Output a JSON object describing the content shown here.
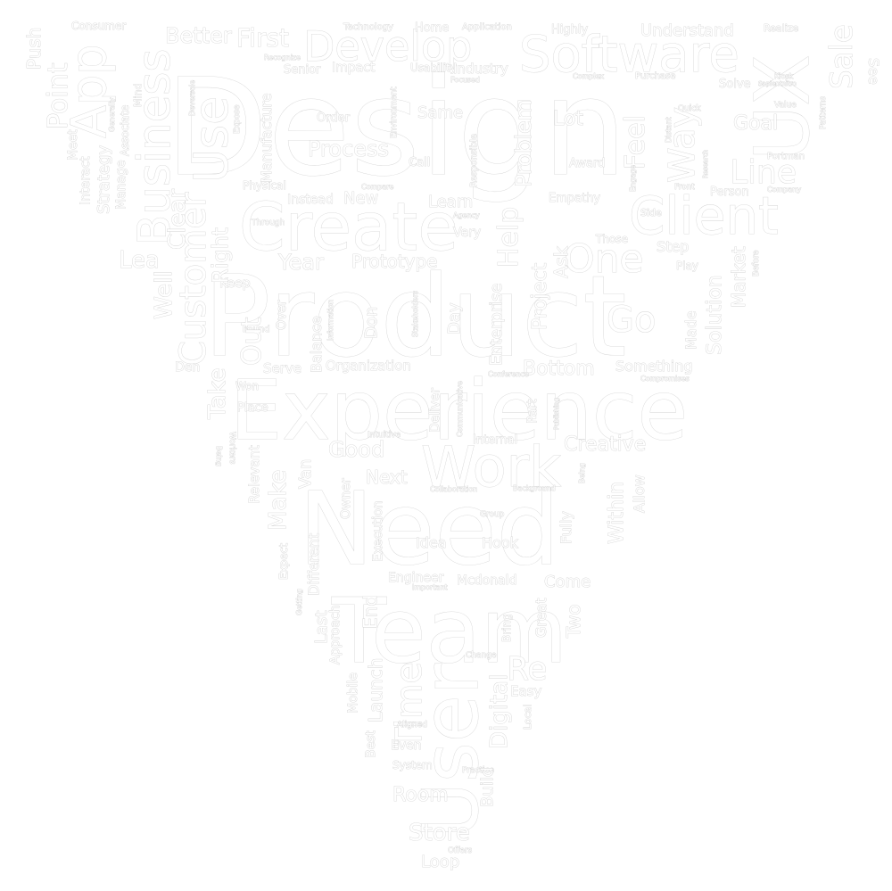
{
  "cloud": {
    "words": [
      "Design",
      "Product",
      "Experience",
      "Need",
      "Team",
      "User",
      "Create",
      "Work",
      "Software",
      "Develop",
      "Business",
      "App",
      "Use",
      "Client",
      "Customer",
      "UX",
      "Sale",
      "Point",
      "Push",
      "Consumer",
      "Better",
      "First",
      "Technology",
      "Home",
      "Application",
      "Highly",
      "Understand",
      "Realize",
      "See",
      "Recognize",
      "Senior",
      "Impact",
      "Usability",
      "Industry",
      "Purchase",
      "Complex",
      "Kiosk",
      "Solve",
      "Value",
      "Sapientnitro",
      "Order",
      "Same",
      "Focused",
      "Responsible",
      "Problem",
      "Lot",
      "Feel",
      "Way",
      "Line",
      "Goal",
      "Patterns",
      "Portman",
      "Quick",
      "Distant",
      "Engage",
      "Research",
      "Front",
      "Person",
      "Company",
      "Process",
      "Call",
      "Award",
      "Empathy",
      "Side",
      "Physical",
      "Instead",
      "New",
      "Learn",
      "Agency",
      "Through",
      "Help",
      "Very",
      "Those",
      "Step",
      "Play",
      "Before",
      "Market",
      "Solution",
      "Made",
      "Go",
      "One",
      "Ask",
      "Project",
      "Enterprise",
      "Day",
      "Don",
      "Stakeholders",
      "Information",
      "Balance",
      "Over",
      "Keep",
      "Found",
      "Out",
      "Right",
      "Clear",
      "Lea",
      "Well",
      "Year",
      "Prototype",
      "Take",
      "Den",
      "Serve",
      "Organization",
      "Bottom",
      "Something",
      "Compromises",
      "Conference",
      "Communicative",
      "Publishing",
      "Deliver",
      "Part",
      "Internal",
      "Creative",
      "Intuitive",
      "Place",
      "Won",
      "Being",
      "Workers",
      "Relevant",
      "Make",
      "Van",
      "Good",
      "Next",
      "Owner",
      "Collaboration",
      "Background",
      "Being",
      "Within",
      "Allow",
      "Fully",
      "Group",
      "Hook",
      "Idea",
      "Execution",
      "Different",
      "Expect",
      "Getting",
      "Engineer",
      "Important",
      "Mcdonald",
      "Come",
      "Two",
      "Last",
      "End",
      "Approach",
      "Mobile",
      "Launch",
      "Time",
      "Great",
      "Bring",
      "Change",
      "Re",
      "Easy",
      "Digital",
      "Local",
      "Aligned",
      "Even",
      "Best",
      "System",
      "Practice",
      "Build",
      "Room",
      "Store",
      "Offers",
      "Loop",
      "Manufacture",
      "Expose",
      "Generally",
      "Interact",
      "Meet",
      "Strategy",
      "Manage",
      "Associate",
      "Mind",
      "Environment",
      "Compare",
      "Deversole"
    ]
  }
}
